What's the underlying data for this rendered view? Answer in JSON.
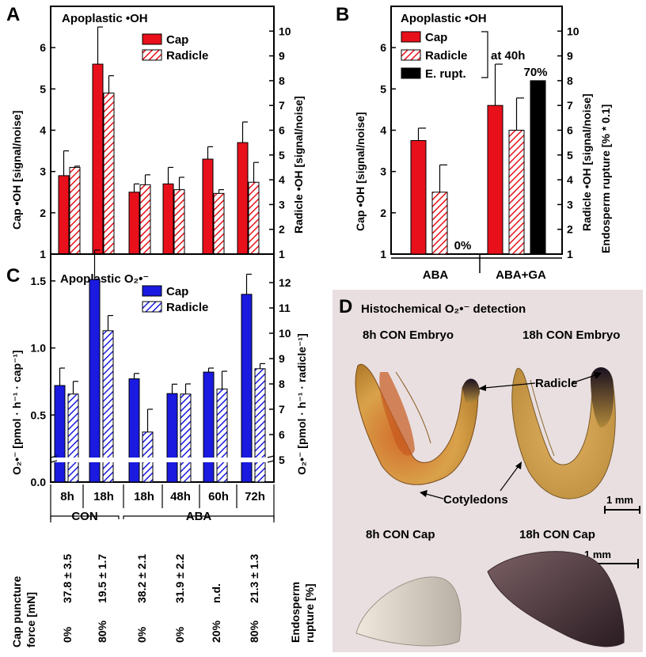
{
  "colors": {
    "cap_red": "#e8101a",
    "radicle_hatch": "#e8101a",
    "cap_blue": "#1a1ae0",
    "radicle_blue_hatch": "#1a1ae0",
    "rupture_black": "#000000",
    "photo_bg": "#e9dfe0"
  },
  "panels": {
    "A": {
      "letter": "A"
    },
    "B": {
      "letter": "B"
    },
    "C": {
      "letter": "C"
    },
    "D": {
      "letter": "D"
    }
  },
  "chart_data": [
    {
      "panel": "A",
      "type": "bar",
      "title": "Apoplastic •OH",
      "ylabel": "Cap •OH [signal/noise]",
      "ylabel_right": "Radicle •OH [signal/noise]",
      "ylim": [
        1,
        7
      ],
      "ylim_right": [
        1,
        11
      ],
      "yticks": [
        "1",
        "2",
        "3",
        "4",
        "5",
        "6"
      ],
      "yticks_right": [
        "1",
        "2",
        "3",
        "4",
        "5",
        "6",
        "7",
        "8",
        "9",
        "10"
      ],
      "categories": [
        "8h",
        "18h",
        "18h",
        "48h",
        "60h",
        "72h"
      ],
      "series": [
        {
          "name": "Cap",
          "values": [
            2.9,
            5.6,
            2.5,
            2.7,
            3.3,
            3.7
          ],
          "errors": [
            0.6,
            0.9,
            0.2,
            0.4,
            0.3,
            0.5
          ]
        },
        {
          "name": "Radicle",
          "values_right_axis": [
            4.5,
            7.5,
            3.8,
            3.6,
            3.45,
            3.9
          ],
          "errors": [
            0.05,
            0.7,
            0.4,
            0.5,
            0.15,
            0.8
          ]
        }
      ]
    },
    {
      "panel": "B",
      "type": "bar",
      "title": "Apoplastic •OH",
      "ylabel": "Cap •OH [signal/noise]",
      "ylabel_right": "Radicle •OH [signal/noise] Endosperm rupture [% * 0.1]",
      "ylim": [
        1,
        7
      ],
      "ylim_right": [
        1,
        11
      ],
      "yticks": [
        "1",
        "2",
        "3",
        "4",
        "5",
        "6"
      ],
      "yticks_right": [
        "1",
        "2",
        "3",
        "4",
        "5",
        "6",
        "7",
        "8",
        "9",
        "10"
      ],
      "legend_bracket_label": "at 40h",
      "categories": [
        "ABA",
        "ABA+GA"
      ],
      "series": [
        {
          "name": "Cap",
          "values": [
            3.75,
            4.6
          ],
          "errors": [
            0.3,
            1.0
          ]
        },
        {
          "name": "Radicle",
          "values_right_axis": [
            3.5,
            6.0
          ],
          "errors": [
            1.1,
            1.3
          ]
        },
        {
          "name": "E. rupt.",
          "values_right_axis": [
            0.0,
            7.0
          ],
          "labels": [
            "0%",
            "70%"
          ]
        }
      ]
    },
    {
      "panel": "C",
      "type": "bar",
      "title": "Apoplastic O₂•⁻",
      "ylabel": "O₂•⁻ [pmol · h⁻¹ · cap⁻¹]",
      "ylabel_right": "O₂•⁻ [pmol · h⁻¹ · radicle⁻¹]",
      "ylim": [
        0,
        1.7
      ],
      "ylim_right": [
        5,
        12
      ],
      "yticks": [
        "0.0",
        "0.5",
        "1.0",
        "1.5"
      ],
      "yticks_right": [
        "5",
        "6",
        "7",
        "8",
        "9",
        "10",
        "11",
        "12"
      ],
      "categories": [
        "8h",
        "18h",
        "18h",
        "48h",
        "60h",
        "72h"
      ],
      "groups": [
        {
          "label": "CON",
          "count": 2
        },
        {
          "label": "ABA",
          "count": 4
        }
      ],
      "series": [
        {
          "name": "Cap",
          "values": [
            0.72,
            1.51,
            0.77,
            0.66,
            0.82,
            1.4
          ],
          "errors": [
            0.13,
            0.22,
            0.04,
            0.07,
            0.03,
            0.15
          ]
        },
        {
          "name": "Radicle",
          "values_right_axis": [
            7.6,
            10.1,
            6.1,
            7.6,
            7.8,
            8.6
          ],
          "errors": [
            0.5,
            0.6,
            0.9,
            0.4,
            0.7,
            0.2
          ]
        }
      ]
    }
  ],
  "table": {
    "cap_puncture_label": "Cap puncture force [mN]",
    "cap_puncture_values": [
      "37.8 ± 3.5",
      "19.5 ± 1.7",
      "38.2 ± 2.1",
      "31.9 ± 2.2",
      "n.d.",
      "21.3 ± 1.3"
    ],
    "endosperm_label": "Endosperm rupture [%]",
    "endosperm_values": [
      "0%",
      "80%",
      "0%",
      "0%",
      "20%",
      "80%"
    ]
  },
  "photo_panel": {
    "title": "Histochemical O₂•⁻ detection",
    "label_embryo_8h": "8h CON Embryo",
    "label_embryo_18h": "18h CON Embryo",
    "label_radicle": "Radicle",
    "label_cotyledons": "Cotyledons",
    "scale_1": "1 mm",
    "label_cap_8h": "8h CON Cap",
    "label_cap_18h": "18h CON Cap",
    "scale_2": "1 mm"
  }
}
